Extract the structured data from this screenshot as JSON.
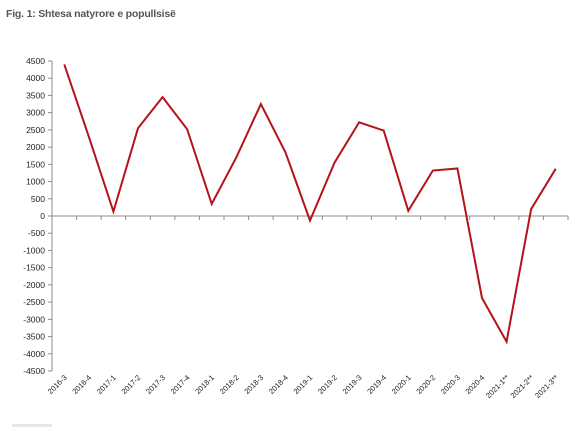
{
  "title": "Fig. 1: Shtesa natyrore e popullsisë",
  "colors": {
    "line": "#b5121b",
    "axis": "#8c8c8c"
  },
  "chart_data": {
    "type": "line",
    "title": "Fig. 1: Shtesa natyrore e popullsisë",
    "xlabel": "",
    "ylabel": "",
    "ylim": [
      -4500,
      4500
    ],
    "yticks": [
      4500,
      4000,
      3500,
      3000,
      2500,
      2000,
      1500,
      1000,
      500,
      0,
      -500,
      -1000,
      -1500,
      -2000,
      -2500,
      -3000,
      -3500,
      -4000,
      -4500
    ],
    "grid": false,
    "legend": "none",
    "categories": [
      "2016-3",
      "2016-4",
      "2017-1",
      "2017-2",
      "2017-3",
      "2017-4",
      "2018-1",
      "2018-2",
      "2018-3",
      "2018-4",
      "2019-1",
      "2019-2",
      "2019-3",
      "2019-4",
      "2020-1",
      "2020-2",
      "2020-3",
      "2020-4",
      "2021-1**",
      "2021-2**",
      "2021-3**"
    ],
    "series": [
      {
        "values": [
          4400,
          2300,
          130,
          2550,
          3450,
          2520,
          350,
          1700,
          3250,
          1850,
          -130,
          1550,
          2720,
          2480,
          150,
          1320,
          1380,
          -2380,
          -3650,
          200,
          1370
        ]
      }
    ]
  }
}
